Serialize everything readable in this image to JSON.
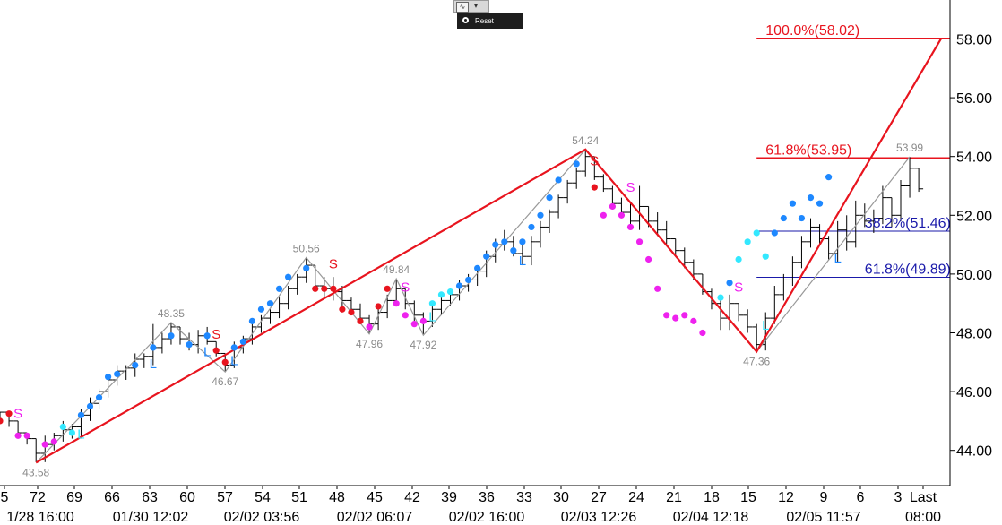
{
  "toolbar": {
    "reset_label": "Reset",
    "chart_icon": "line-chart-icon"
  },
  "chart_data": {
    "type": "line",
    "title": "",
    "xlabel": "",
    "ylabel": "",
    "ylim": [
      43.0,
      59.3
    ],
    "y_ticks": [
      "44.00",
      "46.00",
      "48.00",
      "50.00",
      "52.00",
      "54.00",
      "56.00",
      "58.00"
    ],
    "x_ticks": [
      "5",
      "72",
      "69",
      "66",
      "63",
      "60",
      "57",
      "54",
      "51",
      "48",
      "45",
      "42",
      "39",
      "36",
      "33",
      "30",
      "27",
      "24",
      "21",
      "18",
      "15",
      "12",
      "9",
      "6",
      "3",
      "Last"
    ],
    "date_labels": [
      "1/28 16:00",
      "01/30 12:02",
      "02/02 03:56",
      "02/02 06:07",
      "02/02 16:00",
      "02/03 12:26",
      "02/04 12:18",
      "02/05 11:57",
      "08:00"
    ],
    "grid": false,
    "colors": {
      "price_bars": "#000000",
      "swing_line": "#999999",
      "projection": "#e8141e",
      "fib_extension": "#e8141e",
      "retracement": "#1a1aaa",
      "strong_up": "#1e88ff",
      "weak_up": "#33e8ff",
      "strong_down": "#e8141e",
      "weak_down": "#ee22ee"
    },
    "bars": [
      [
        0,
        45.1,
        45.1,
        45.3,
        45.3
      ],
      [
        1,
        45.3,
        44.8,
        45.3,
        45.0
      ],
      [
        2,
        45.0,
        44.4,
        45.0,
        44.6
      ],
      [
        3,
        44.6,
        44.2,
        44.6,
        44.4
      ],
      [
        4,
        44.4,
        43.6,
        44.4,
        43.9
      ],
      [
        5,
        43.9,
        43.6,
        44.5,
        44.2
      ],
      [
        6,
        44.2,
        44.0,
        44.6,
        44.5
      ],
      [
        7,
        44.5,
        44.3,
        45.0,
        44.7
      ],
      [
        8,
        44.7,
        44.4,
        44.9,
        44.8
      ],
      [
        9,
        44.8,
        44.4,
        45.4,
        45.2
      ],
      [
        10,
        45.2,
        45.0,
        45.8,
        45.6
      ],
      [
        11,
        45.6,
        45.4,
        46.1,
        46.0
      ],
      [
        12,
        46.0,
        45.8,
        46.6,
        46.4
      ],
      [
        13,
        46.4,
        46.2,
        46.9,
        46.7
      ],
      [
        14,
        46.7,
        46.4,
        46.9,
        46.8
      ],
      [
        15,
        46.8,
        46.5,
        47.3,
        47.1
      ],
      [
        16,
        47.1,
        46.8,
        47.3,
        47.2
      ],
      [
        17,
        47.2,
        46.9,
        48.3,
        47.5
      ],
      [
        18,
        47.5,
        47.3,
        48.0,
        47.8
      ],
      [
        19,
        47.8,
        47.6,
        48.35,
        48.2
      ],
      [
        20,
        48.2,
        47.6,
        48.2,
        47.8
      ],
      [
        21,
        47.8,
        47.4,
        48.0,
        47.6
      ],
      [
        22,
        47.6,
        47.3,
        48.1,
        47.9
      ],
      [
        23,
        47.9,
        47.6,
        48.2,
        47.7
      ],
      [
        24,
        47.7,
        47.2,
        47.7,
        47.3
      ],
      [
        25,
        47.3,
        46.67,
        47.3,
        46.9
      ],
      [
        26,
        46.9,
        46.8,
        47.7,
        47.5
      ],
      [
        27,
        47.5,
        47.3,
        47.9,
        47.8
      ],
      [
        28,
        47.8,
        47.6,
        48.4,
        48.2
      ],
      [
        29,
        48.2,
        48.0,
        48.6,
        48.5
      ],
      [
        30,
        48.5,
        48.3,
        48.8,
        48.7
      ],
      [
        31,
        48.7,
        48.5,
        49.2,
        49.0
      ],
      [
        32,
        49.0,
        48.8,
        49.6,
        49.5
      ],
      [
        33,
        49.5,
        49.3,
        50.0,
        49.9
      ],
      [
        34,
        49.9,
        49.7,
        50.56,
        50.3
      ],
      [
        35,
        50.3,
        49.5,
        50.3,
        49.6
      ],
      [
        36,
        49.6,
        49.2,
        49.9,
        49.5
      ],
      [
        37,
        49.5,
        49.1,
        49.9,
        49.4
      ],
      [
        38,
        49.4,
        48.9,
        49.6,
        49.1
      ],
      [
        39,
        49.1,
        48.6,
        49.2,
        48.8
      ],
      [
        40,
        48.8,
        48.4,
        49.0,
        48.5
      ],
      [
        41,
        48.5,
        47.96,
        48.6,
        48.3
      ],
      [
        42,
        48.3,
        48.1,
        48.9,
        48.7
      ],
      [
        43,
        48.7,
        48.5,
        49.3,
        49.1
      ],
      [
        44,
        49.1,
        48.9,
        49.84,
        49.5
      ],
      [
        45,
        49.5,
        48.8,
        49.5,
        49.0
      ],
      [
        46,
        49.0,
        48.4,
        49.1,
        48.6
      ],
      [
        47,
        48.6,
        47.92,
        48.7,
        48.4
      ],
      [
        48,
        48.4,
        48.2,
        49.0,
        48.8
      ],
      [
        49,
        48.8,
        48.6,
        49.3,
        49.1
      ],
      [
        50,
        49.1,
        48.9,
        49.5,
        49.3
      ],
      [
        51,
        49.3,
        49.1,
        49.8,
        49.6
      ],
      [
        52,
        49.6,
        49.4,
        50.0,
        49.8
      ],
      [
        53,
        49.8,
        49.6,
        50.3,
        50.1
      ],
      [
        54,
        50.1,
        49.9,
        50.8,
        50.6
      ],
      [
        55,
        50.6,
        50.4,
        51.2,
        51.0
      ],
      [
        56,
        51.0,
        50.8,
        51.5,
        51.1
      ],
      [
        57,
        51.1,
        50.6,
        51.3,
        50.7
      ],
      [
        58,
        50.7,
        50.3,
        51.0,
        50.6
      ],
      [
        59,
        50.6,
        50.3,
        51.3,
        51.1
      ],
      [
        60,
        51.1,
        50.9,
        51.8,
        51.6
      ],
      [
        61,
        51.6,
        51.4,
        52.2,
        52.1
      ],
      [
        62,
        52.1,
        51.9,
        52.7,
        52.6
      ],
      [
        63,
        52.6,
        52.4,
        53.2,
        53.1
      ],
      [
        64,
        53.1,
        52.9,
        53.6,
        53.5
      ],
      [
        65,
        53.5,
        53.3,
        54.24,
        54.0
      ],
      [
        66,
        54.0,
        53.2,
        54.0,
        53.3
      ],
      [
        67,
        53.3,
        52.8,
        53.4,
        52.9
      ],
      [
        68,
        52.9,
        52.2,
        53.0,
        52.4
      ],
      [
        69,
        52.4,
        51.9,
        52.6,
        52.1
      ],
      [
        70,
        52.1,
        51.6,
        52.4,
        51.8
      ],
      [
        71,
        51.8,
        51.5,
        53.0,
        52.3
      ],
      [
        72,
        52.3,
        51.6,
        52.3,
        51.8
      ],
      [
        73,
        51.8,
        51.3,
        52.1,
        51.5
      ],
      [
        74,
        51.5,
        51.0,
        51.8,
        51.2
      ],
      [
        75,
        51.2,
        50.6,
        51.2,
        50.8
      ],
      [
        76,
        50.8,
        50.2,
        50.9,
        50.4
      ],
      [
        77,
        50.4,
        49.8,
        50.5,
        50.0
      ],
      [
        78,
        50.0,
        49.3,
        50.0,
        49.4
      ],
      [
        79,
        49.4,
        48.8,
        49.5,
        49.0
      ],
      [
        80,
        49.0,
        48.1,
        49.1,
        48.5
      ],
      [
        81,
        48.5,
        48.1,
        49.3,
        49.0
      ],
      [
        82,
        49.0,
        48.4,
        49.0,
        48.6
      ],
      [
        83,
        48.6,
        48.0,
        48.8,
        48.2
      ],
      [
        84,
        48.2,
        47.36,
        48.3,
        47.6
      ],
      [
        85,
        47.6,
        47.4,
        48.7,
        48.5
      ],
      [
        86,
        48.5,
        48.3,
        49.6,
        49.3
      ],
      [
        87,
        49.3,
        49.1,
        50.0,
        49.8
      ],
      [
        88,
        49.8,
        49.6,
        50.6,
        50.4
      ],
      [
        89,
        50.4,
        50.2,
        51.3,
        51.1
      ],
      [
        90,
        51.1,
        50.9,
        51.9,
        51.6
      ],
      [
        91,
        51.6,
        51.0,
        51.7,
        51.2
      ],
      [
        92,
        51.2,
        50.5,
        51.3,
        50.7
      ],
      [
        93,
        50.7,
        50.4,
        51.8,
        51.5
      ],
      [
        94,
        51.5,
        50.8,
        52.0,
        51.1
      ],
      [
        95,
        51.1,
        50.9,
        52.5,
        52.0
      ],
      [
        96,
        52.0,
        51.6,
        52.4,
        51.8
      ],
      [
        97,
        51.8,
        51.4,
        52.2,
        51.9
      ],
      [
        98,
        51.9,
        51.7,
        53.0,
        52.6
      ],
      [
        99,
        52.6,
        51.6,
        52.6,
        52.0
      ],
      [
        100,
        52.0,
        51.8,
        53.2,
        53.0
      ],
      [
        101,
        53.0,
        52.6,
        53.99,
        53.6
      ],
      [
        102,
        53.6,
        52.8,
        53.6,
        52.9
      ]
    ],
    "dots": [
      [
        0,
        45.0,
        "strong_down"
      ],
      [
        1,
        45.25,
        "strong_down"
      ],
      [
        2,
        44.5,
        "weak_down"
      ],
      [
        3,
        44.5,
        "weak_down"
      ],
      [
        5,
        44.2,
        "weak_down"
      ],
      [
        6,
        44.3,
        "weak_down"
      ],
      [
        7,
        44.8,
        "weak_up"
      ],
      [
        8,
        44.6,
        "weak_up"
      ],
      [
        9,
        45.2,
        "strong_up"
      ],
      [
        10,
        45.5,
        "strong_up"
      ],
      [
        11,
        45.8,
        "strong_up"
      ],
      [
        12,
        46.5,
        "strong_up"
      ],
      [
        13,
        46.6,
        "strong_up"
      ],
      [
        15,
        46.9,
        "strong_up"
      ],
      [
        17,
        47.5,
        "strong_up"
      ],
      [
        19,
        47.9,
        "strong_up"
      ],
      [
        21,
        47.6,
        "strong_up"
      ],
      [
        23,
        47.9,
        "strong_up"
      ],
      [
        24,
        47.4,
        "strong_down"
      ],
      [
        25,
        47.0,
        "strong_down"
      ],
      [
        26,
        47.5,
        "strong_up"
      ],
      [
        27,
        47.7,
        "strong_up"
      ],
      [
        28,
        48.4,
        "strong_up"
      ],
      [
        29,
        48.8,
        "strong_up"
      ],
      [
        30,
        49.0,
        "strong_up"
      ],
      [
        31,
        49.5,
        "strong_up"
      ],
      [
        32,
        49.9,
        "strong_up"
      ],
      [
        34,
        50.2,
        "strong_up"
      ],
      [
        35,
        49.5,
        "strong_down"
      ],
      [
        36,
        49.5,
        "strong_down"
      ],
      [
        37,
        49.5,
        "strong_down"
      ],
      [
        38,
        48.8,
        "strong_down"
      ],
      [
        39,
        48.7,
        "strong_down"
      ],
      [
        40,
        48.4,
        "strong_down"
      ],
      [
        41,
        48.2,
        "weak_down"
      ],
      [
        42,
        48.9,
        "strong_down"
      ],
      [
        43,
        49.5,
        "strong_down"
      ],
      [
        44,
        49.0,
        "weak_down"
      ],
      [
        45,
        48.6,
        "weak_down"
      ],
      [
        46,
        48.3,
        "weak_down"
      ],
      [
        47,
        48.4,
        "weak_down"
      ],
      [
        48,
        49.0,
        "weak_up"
      ],
      [
        49,
        49.3,
        "weak_up"
      ],
      [
        50,
        49.4,
        "weak_up"
      ],
      [
        51,
        49.6,
        "strong_up"
      ],
      [
        52,
        49.8,
        "strong_up"
      ],
      [
        53,
        50.2,
        "strong_up"
      ],
      [
        54,
        50.6,
        "strong_up"
      ],
      [
        55,
        51.0,
        "strong_up"
      ],
      [
        56,
        51.1,
        "strong_up"
      ],
      [
        57,
        50.8,
        "strong_up"
      ],
      [
        58,
        51.1,
        "strong_up"
      ],
      [
        59,
        51.6,
        "strong_up"
      ],
      [
        60,
        52.0,
        "strong_up"
      ],
      [
        61,
        52.6,
        "strong_up"
      ],
      [
        62,
        53.2,
        "strong_up"
      ],
      [
        64,
        53.75,
        "strong_up"
      ],
      [
        66,
        52.95,
        "strong_down"
      ],
      [
        67,
        52.0,
        "weak_down"
      ],
      [
        68,
        52.3,
        "weak_down"
      ],
      [
        69,
        52.0,
        "weak_down"
      ],
      [
        70,
        51.6,
        "weak_down"
      ],
      [
        71,
        51.1,
        "weak_down"
      ],
      [
        72,
        50.5,
        "weak_down"
      ],
      [
        73,
        49.5,
        "weak_down"
      ],
      [
        74,
        48.6,
        "weak_down"
      ],
      [
        75,
        48.5,
        "weak_down"
      ],
      [
        76,
        48.6,
        "weak_down"
      ],
      [
        77,
        48.4,
        "weak_down"
      ],
      [
        78,
        48.0,
        "weak_down"
      ],
      [
        80,
        49.2,
        "weak_up"
      ],
      [
        81,
        49.7,
        "strong_up"
      ],
      [
        82,
        50.5,
        "weak_up"
      ],
      [
        83,
        51.1,
        "weak_up"
      ],
      [
        84,
        51.4,
        "weak_up"
      ],
      [
        85,
        50.6,
        "weak_up"
      ],
      [
        86,
        51.4,
        "strong_up"
      ],
      [
        87,
        51.9,
        "strong_up"
      ],
      [
        88,
        52.4,
        "strong_up"
      ],
      [
        89,
        51.9,
        "strong_up"
      ],
      [
        90,
        52.6,
        "strong_up"
      ],
      [
        91,
        52.4,
        "strong_up"
      ],
      [
        92,
        53.3,
        "strong_up"
      ]
    ],
    "swing_points": [
      {
        "i": 4,
        "v": 43.58,
        "label": "43.58",
        "pos": "below"
      },
      {
        "i": 19,
        "v": 48.35,
        "label": "48.35",
        "pos": "above"
      },
      {
        "i": 25,
        "v": 46.67,
        "label": "46.67",
        "pos": "below"
      },
      {
        "i": 34,
        "v": 50.56,
        "label": "50.56",
        "pos": "above"
      },
      {
        "i": 41,
        "v": 47.96,
        "label": "47.96",
        "pos": "below"
      },
      {
        "i": 44,
        "v": 49.84,
        "label": "49.84",
        "pos": "above"
      },
      {
        "i": 47,
        "v": 47.92,
        "label": "47.92",
        "pos": "below"
      },
      {
        "i": 65,
        "v": 54.24,
        "label": "54.24",
        "pos": "above"
      },
      {
        "i": 84,
        "v": 47.36,
        "label": "47.36",
        "pos": "below"
      },
      {
        "i": 101,
        "v": 53.99,
        "label": "53.99",
        "pos": "above"
      }
    ],
    "signals": [
      {
        "i": 2,
        "v": 45.1,
        "label": "S",
        "color": "weak_down"
      },
      {
        "i": 9,
        "v": 44.4,
        "label": "L",
        "color": "weak_up"
      },
      {
        "i": 17,
        "v": 46.8,
        "label": "L",
        "color": "strong_up"
      },
      {
        "i": 23,
        "v": 47.2,
        "label": "L",
        "color": "strong_up"
      },
      {
        "i": 24,
        "v": 47.8,
        "label": "S",
        "color": "strong_down"
      },
      {
        "i": 26,
        "v": 46.9,
        "label": "L",
        "color": "strong_up"
      },
      {
        "i": 37,
        "v": 50.2,
        "label": "S",
        "color": "strong_down"
      },
      {
        "i": 45,
        "v": 49.4,
        "label": "S",
        "color": "weak_down"
      },
      {
        "i": 48,
        "v": 48.4,
        "label": "L",
        "color": "weak_up"
      },
      {
        "i": 58,
        "v": 50.3,
        "label": "L",
        "color": "strong_up"
      },
      {
        "i": 66,
        "v": 53.7,
        "label": "S",
        "color": "strong_down"
      },
      {
        "i": 70,
        "v": 52.8,
        "label": "S",
        "color": "weak_down"
      },
      {
        "i": 82,
        "v": 49.4,
        "label": "S",
        "color": "weak_down"
      },
      {
        "i": 85,
        "v": 48.1,
        "label": "L",
        "color": "weak_up"
      },
      {
        "i": 93,
        "v": 50.4,
        "label": "L",
        "color": "strong_up"
      }
    ],
    "projection_line": [
      {
        "i": 4,
        "v": 43.58
      },
      {
        "i": 65,
        "v": 54.24
      },
      {
        "i": 84,
        "v": 47.36
      },
      {
        "i": 104.5,
        "v": 58.02
      }
    ],
    "fib_levels": [
      {
        "label": "100.0%(58.02)",
        "value": 58.02,
        "color": "fib_extension",
        "from_i": 84,
        "label_i": 85
      },
      {
        "label": "61.8%(53.95)",
        "value": 53.95,
        "color": "fib_extension",
        "from_i": 84,
        "label_i": 85
      },
      {
        "label": "38.2%(51.46)",
        "value": 51.46,
        "color": "retracement",
        "from_i": 84,
        "label_i": 96
      },
      {
        "label": "61.8%(49.89)",
        "value": 49.89,
        "color": "retracement",
        "from_i": 84,
        "label_i": 96
      }
    ]
  }
}
